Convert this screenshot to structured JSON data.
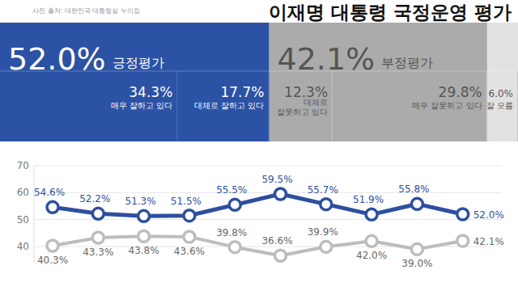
{
  "chart_data": [
    {
      "type": "bar",
      "orientation": "horizontal",
      "stacked": true,
      "annotations": [
        "사진 출처: 대한민국 대통령실 누리집"
      ],
      "categories": [
        null
      ],
      "xlim": [
        0,
        100.1
      ],
      "xticks": [],
      "tick_labels": false,
      "data_labels": true,
      "groups": [
        {
          "name": "긍정평가",
          "value": 52.0,
          "value_label": "52.0%",
          "color": "#2b52a4"
        },
        {
          "name": "부정평가",
          "value": 42.1,
          "value_label": "42.1%",
          "color": "#ababab"
        }
      ],
      "series": [
        {
          "name": "매우 잘하고 있다",
          "values": [
            34.3
          ],
          "value_labels": [
            "34.3%"
          ],
          "color": "#2b52a4"
        },
        {
          "name": "대체로 잘하고 있다",
          "values": [
            17.7
          ],
          "value_labels": [
            "17.7%"
          ],
          "color": "#2b52a4"
        },
        {
          "name": "대체로\n잘못하고 있다",
          "values": [
            12.3
          ],
          "value_labels": [
            "12.3%"
          ],
          "color": "#ababab"
        },
        {
          "name": "매우 잘못하고 있다",
          "values": [
            29.8
          ],
          "value_labels": [
            "29.8%"
          ],
          "color": "#ababab"
        },
        {
          "name": "잘 모름",
          "values": [
            6.0
          ],
          "value_labels": [
            "6.0%"
          ],
          "color": "#e2e2e2"
        }
      ]
    },
    {
      "type": "line",
      "title": "이재명 대통령 국정운영 평가",
      "categories": [
        null,
        null,
        null,
        null,
        null,
        null,
        null,
        null,
        null,
        null
      ],
      "ylim": [
        34,
        70
      ],
      "yticks": [
        40,
        50,
        60,
        70
      ],
      "grid": true,
      "tick_labels": "y",
      "data_labels": true,
      "marker": "circle",
      "series": [
        {
          "color": "#2d4f9f",
          "values": [
            54.6,
            52.2,
            51.3,
            51.5,
            55.5,
            59.5,
            55.7,
            51.9,
            55.8,
            52.0
          ],
          "value_labels": [
            "54.6%",
            "52.2%",
            "51.3%",
            "51.5%",
            "55.5%",
            "59.5%",
            "55.7%",
            "51.9%",
            "55.8%",
            "52.0%"
          ]
        },
        {
          "color": "#bdbdbd",
          "values": [
            40.3,
            43.3,
            43.8,
            43.6,
            39.8,
            36.6,
            39.9,
            42.0,
            39.0,
            42.1
          ],
          "value_labels": [
            "40.3%",
            "43.3%",
            "43.8%",
            "43.6%",
            "39.8%",
            "36.6%",
            "39.9%",
            "42.0%",
            "39.0%",
            "42.1%"
          ]
        }
      ]
    }
  ]
}
